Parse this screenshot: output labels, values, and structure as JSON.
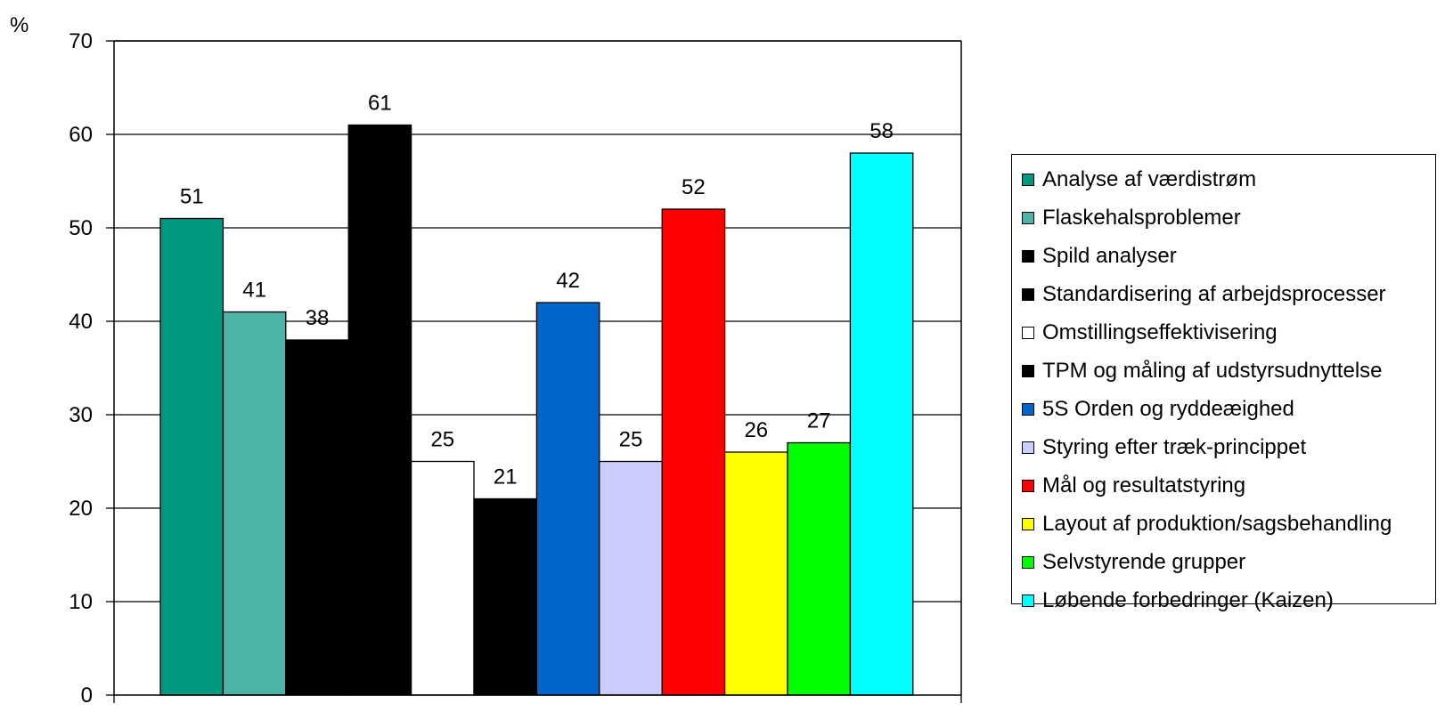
{
  "chart_data": {
    "type": "bar",
    "ylabel": "%",
    "ylim": [
      0,
      70
    ],
    "ytick_step": 10,
    "grid": true,
    "legend_position": "right",
    "series": [
      {
        "name": "Analyse af værdistrøm",
        "value": 51,
        "color": "#009980"
      },
      {
        "name": "Flaskehalsproblemer",
        "value": 41,
        "color": "#4db3a6"
      },
      {
        "name": "Spild analyser",
        "value": 38,
        "color": "#000000"
      },
      {
        "name": "Standardisering af arbejdsprocesser",
        "value": 61,
        "color": "#000000"
      },
      {
        "name": "Omstillingseffektivisering",
        "value": 25,
        "color": "#ffffff"
      },
      {
        "name": "TPM og måling af udstyrsudnyttelse",
        "value": 21,
        "color": "#000000"
      },
      {
        "name": "5S Orden og ryddeæighed",
        "value": 42,
        "color": "#0066cc"
      },
      {
        "name": "Styring efter træk-princippet",
        "value": 25,
        "color": "#ccccff"
      },
      {
        "name": "Mål og resultatstyring",
        "value": 52,
        "color": "#ff0000"
      },
      {
        "name": "Layout af produktion/sagsbehandling",
        "value": 26,
        "color": "#ffff00"
      },
      {
        "name": "Selvstyrende grupper",
        "value": 27,
        "color": "#00ff00"
      },
      {
        "name": "Løbende forbedringer (Kaizen)",
        "value": 58,
        "color": "#00ffff"
      }
    ]
  }
}
